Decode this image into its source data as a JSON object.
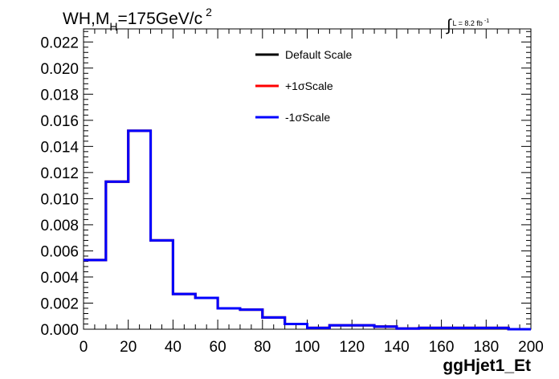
{
  "chart_data": {
    "type": "line",
    "title": {
      "main": "WH,M",
      "subscript": "H",
      "rest": "=175GeV/c",
      "superscript": "2"
    },
    "luminosity": {
      "integral_symbol": "∫",
      "text": "L = 8.2 fb",
      "superscript": "-1"
    },
    "xlabel": "ggHjet1_Et",
    "ylabel": "",
    "xlim": [
      0,
      200
    ],
    "ylim": [
      0,
      0.023
    ],
    "x_ticks": [
      "0",
      "20",
      "40",
      "60",
      "80",
      "100",
      "120",
      "140",
      "160",
      "180",
      "200"
    ],
    "y_ticks": [
      "0.000",
      "0.002",
      "0.004",
      "0.006",
      "0.008",
      "0.010",
      "0.012",
      "0.014",
      "0.016",
      "0.018",
      "0.020",
      "0.022"
    ],
    "bin_edges": [
      0,
      10,
      20,
      30,
      40,
      50,
      60,
      70,
      80,
      90,
      100,
      110,
      120,
      130,
      140,
      150,
      160,
      170,
      180,
      190,
      200
    ],
    "series": [
      {
        "name": "Default Scale",
        "color": "#000000",
        "values": [
          0.0053,
          0.0113,
          0.0152,
          0.0068,
          0.0027,
          0.0024,
          0.0016,
          0.0015,
          0.0009,
          0.0004,
          0.0001,
          0.0003,
          0.0003,
          0.0002,
          5e-05,
          0.0001,
          0.0001,
          0.0001,
          0.0001,
          0.0
        ]
      },
      {
        "name": "+1σScale",
        "color": "#ff0000",
        "values": [
          0.0053,
          0.0113,
          0.0152,
          0.0068,
          0.0027,
          0.0024,
          0.0016,
          0.0015,
          0.0009,
          0.0004,
          0.0001,
          0.0003,
          0.0003,
          0.0002,
          5e-05,
          0.0001,
          0.0001,
          0.0001,
          0.0001,
          0.0
        ]
      },
      {
        "name": "-1σScale",
        "color": "#0000ff",
        "values": [
          0.0053,
          0.0113,
          0.0152,
          0.0068,
          0.0027,
          0.0024,
          0.0016,
          0.0015,
          0.0009,
          0.0004,
          0.0001,
          0.0003,
          0.0003,
          0.0002,
          5e-05,
          0.0001,
          0.0001,
          0.0001,
          0.0001,
          0.0
        ]
      }
    ],
    "legend_placement": "top-center",
    "grid": false
  }
}
